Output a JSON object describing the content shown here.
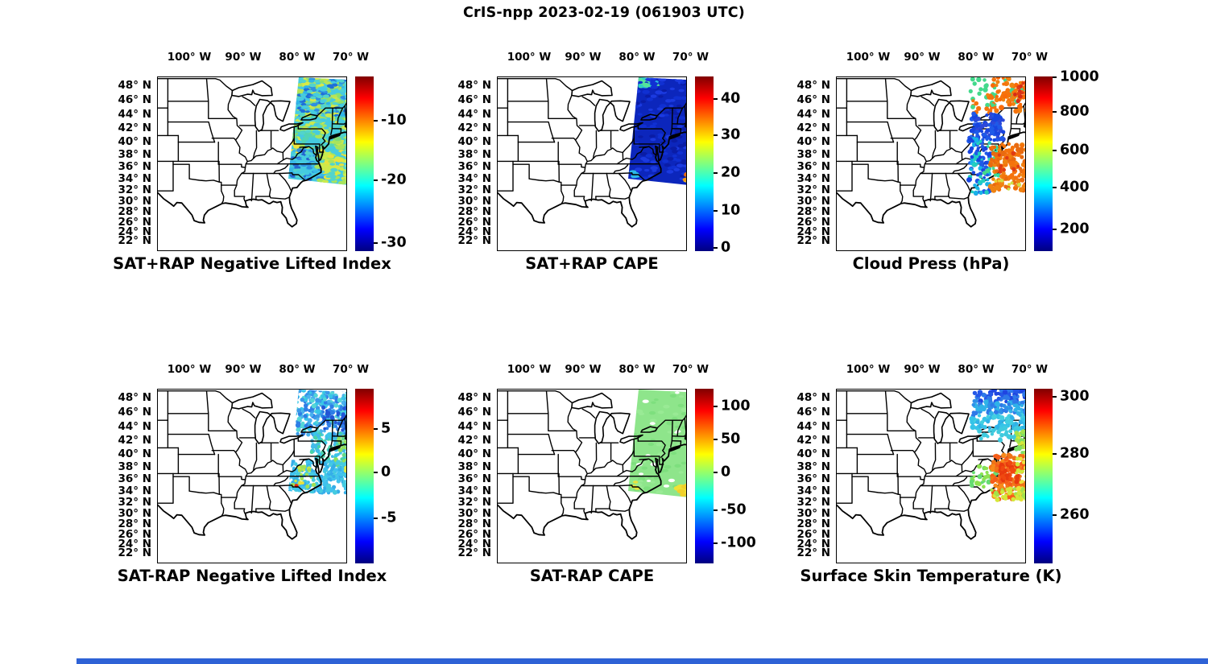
{
  "ui": {
    "window_title": "CrIS-npp 2023-02-19 (061903 UTC)",
    "background_color": "#ffffff",
    "text_color": "#000000",
    "bottom_strip_color": "#2e62d6"
  },
  "chart_data": {
    "type": "scatter",
    "layout": "2 rows x 3 columns of identical US maps with individual jet colorbars",
    "title": "CrIS-npp 2023-02-19 (061903 UTC)",
    "colormap": "jet",
    "map_extent_note": "Eastern United States, approx 106W-70W and 21N-49N, state boundaries drawn in black; satellite swath data over the Northeast US and western Atlantic",
    "lon_ticks": [
      "100° W",
      "90° W",
      "80° W",
      "70° W"
    ],
    "lat_ticks": [
      "48° N",
      "46° N",
      "44° N",
      "42° N",
      "40° N",
      "38° N",
      "36° N",
      "34° N",
      "32° N",
      "30° N",
      "28° N",
      "26° N",
      "24° N",
      "22° N"
    ],
    "panels": [
      {
        "title": "SAT+RAP Negative Lifted Index",
        "summary": "Dense retrieval swath ~79W-66W, 34N-49N: cyan field with green/yellow patches, blue streaks along coast, yellow area southeast offshore",
        "colorbar_ticks": [
          {
            "v": "-10",
            "pct": 25.5
          },
          {
            "v": "-20",
            "pct": 59.5
          },
          {
            "v": "-30",
            "pct": 95.5
          }
        ],
        "seed": 101,
        "base": "#45cbe0",
        "clip": "swath",
        "dots_on_top": false,
        "ellipse": true,
        "clusters": [
          {
            "x": [
              172,
              250
            ],
            "y": [
              1,
              48
            ],
            "n": 130,
            "r": 2.6,
            "c": [
              "#b8e455",
              "#8ce06e",
              "#d6ea48"
            ]
          },
          {
            "x": [
              172,
              250
            ],
            "y": [
              2,
              50
            ],
            "n": 90,
            "r": 2.2,
            "c": [
              "#2f8fe0",
              "#2fb4e8",
              "#1f6fd8"
            ]
          },
          {
            "x": [
              166,
              250
            ],
            "y": [
              48,
              95
            ],
            "n": 160,
            "r": 2.6,
            "c": [
              "#7fdc78",
              "#a8e45c",
              "#52d4b4",
              "#c9e84e"
            ]
          },
          {
            "x": [
              165,
              178
            ],
            "y": [
              78,
              96
            ],
            "n": 16,
            "r": 2.4,
            "c": [
              "#f0e43a"
            ]
          },
          {
            "x": [
              164,
              208
            ],
            "y": [
              88,
              128
            ],
            "n": 90,
            "r": 2.2,
            "c": [
              "#2f8fe0",
              "#38b8e8",
              "#2565d0",
              "#45cbe0"
            ]
          },
          {
            "x": [
              200,
              250
            ],
            "y": [
              92,
              134
            ],
            "n": 130,
            "r": 2.6,
            "c": [
              "#e6e23e",
              "#ccea4c",
              "#a8e45c"
            ]
          },
          {
            "x": [
              172,
              250
            ],
            "y": [
              1,
              128
            ],
            "n": 120,
            "r": 2.4,
            "c": [
              "#45cbe0",
              "#52d4cc"
            ]
          }
        ]
      },
      {
        "title": "SAT+RAP CAPE",
        "summary": "Same swath almost uniformly dark blue (~0 J/kg); small cyan-green patch at swath top-left corner, cyan dot at SC coast, tiny orange/yellow spot at right edge near 34N",
        "colorbar_ticks": [
          {
            "v": "40",
            "pct": 13
          },
          {
            "v": "30",
            "pct": 33.5
          },
          {
            "v": "20",
            "pct": 55.5
          },
          {
            "v": "10",
            "pct": 77
          },
          {
            "v": "0",
            "pct": 98
          }
        ],
        "seed": 202,
        "base": "#0c26bc",
        "clip": "swath",
        "dots_on_top": false,
        "ellipse": true,
        "clusters": [
          {
            "x": [
              176,
              200
            ],
            "y": [
              1,
              13
            ],
            "n": 26,
            "r": 2.2,
            "c": [
              "#2ecfc4",
              "#55e49a",
              "#28b2e8"
            ]
          },
          {
            "x": [
              172,
              250
            ],
            "y": [
              1,
              130
            ],
            "n": 150,
            "r": 2.4,
            "c": [
              "#0a1ca6",
              "#1030d2",
              "#1b3ae0"
            ]
          },
          {
            "x": [
              168,
              176
            ],
            "y": [
              116,
              126
            ],
            "n": 5,
            "r": 2.2,
            "c": [
              "#2cb8e8"
            ]
          },
          {
            "x": [
              234,
              242
            ],
            "y": [
              119,
              130
            ],
            "n": 7,
            "r": 2.4,
            "c": [
              "#f59a10",
              "#f2c81e",
              "#e86a10"
            ]
          }
        ]
      },
      {
        "title": "Cloud Press (hPa)",
        "summary": "Sparser cloud-top dots: orange (~800 hPa) over New England and offshore Atlantic, royal-blue patch (~150-250 hPa) over PA/NY, cyan column inland 34-38N, scattered green (~500 hPa) along top, red specks northeast",
        "colorbar_ticks": [
          {
            "v": "1000",
            "pct": 0.5
          },
          {
            "v": "800",
            "pct": 20.5
          },
          {
            "v": "600",
            "pct": 42.5
          },
          {
            "v": "400",
            "pct": 63.5
          },
          {
            "v": "200",
            "pct": 87.5
          }
        ],
        "seed": 303,
        "base": null,
        "clip": "rect",
        "dots_on_top": true,
        "ellipse": false,
        "clusters": [
          {
            "x": [
              166,
              246
            ],
            "y": [
              2,
              32
            ],
            "n": 30,
            "r": 2.6,
            "c": [
              "#43d98c"
            ]
          },
          {
            "x": [
              188,
              250
            ],
            "y": [
              1,
              44
            ],
            "n": 110,
            "r": 2.6,
            "c": [
              "#f5730c",
              "#ef8312",
              "#fa6a08"
            ]
          },
          {
            "x": [
              222,
              248
            ],
            "y": [
              6,
              34
            ],
            "n": 14,
            "r": 2.4,
            "c": [
              "#d62c1a",
              "#e03c14"
            ]
          },
          {
            "x": [
              170,
              200
            ],
            "y": [
              28,
              50
            ],
            "n": 16,
            "r": 2.4,
            "c": [
              "#43d98c",
              "#f5730c"
            ]
          },
          {
            "x": [
              168,
              208
            ],
            "y": [
              46,
              80
            ],
            "n": 110,
            "r": 2.5,
            "c": [
              "#1845e0",
              "#1f5ae8",
              "#2e48d8"
            ]
          },
          {
            "x": [
              165,
              192
            ],
            "y": [
              76,
              145
            ],
            "n": 100,
            "r": 2.5,
            "c": [
              "#1845e0",
              "#18b2e8",
              "#22cfc0",
              "#1f5ae8"
            ]
          },
          {
            "x": [
              184,
              202
            ],
            "y": [
              84,
              124
            ],
            "n": 18,
            "r": 2.3,
            "c": [
              "#43d98c",
              "#2ee0a8"
            ]
          },
          {
            "x": [
              192,
              246
            ],
            "y": [
              84,
              142
            ],
            "n": 170,
            "r": 2.7,
            "c": [
              "#f5730c",
              "#ef8312",
              "#e86a10"
            ]
          },
          {
            "x": [
              200,
              230
            ],
            "y": [
              95,
              120
            ],
            "n": 10,
            "r": 2.4,
            "c": [
              "#e03c14"
            ]
          },
          {
            "x": [
              196,
              240
            ],
            "y": [
              128,
              140
            ],
            "n": 8,
            "r": 2.3,
            "c": [
              "#e8d232",
              "#cde04a"
            ]
          }
        ]
      },
      {
        "title": "SAT-RAP Negative Lifted Index",
        "summary": "Swath of cyan/light-blue dots (differences near 0 to -3); darker blue top and New England, green strip at right edge 38-42N, yellow-green specks along coast, one red dot near SC coast (~34N,79W)",
        "colorbar_ticks": [
          {
            "v": "5",
            "pct": 23
          },
          {
            "v": "0",
            "pct": 48
          },
          {
            "v": "-5",
            "pct": 74
          }
        ],
        "seed": 404,
        "base": null,
        "clip": "swath",
        "dots_on_top": false,
        "ellipse": false,
        "clusters": [
          {
            "x": [
              170,
              250
            ],
            "y": [
              1,
              58
            ],
            "n": 300,
            "r": 2.4,
            "c": [
              "#4ab2ee",
              "#37c6e8",
              "#2e7ee6",
              "#55d6d6",
              "#3a9ae8"
            ]
          },
          {
            "x": [
              205,
              248
            ],
            "y": [
              22,
              62
            ],
            "n": 60,
            "r": 2.4,
            "c": [
              "#2356d6",
              "#2e7ee6"
            ]
          },
          {
            "x": [
              192,
              250
            ],
            "y": [
              55,
              92
            ],
            "n": 140,
            "r": 2.4,
            "c": [
              "#3cc6e8",
              "#49d4a8",
              "#42bce8"
            ]
          },
          {
            "x": [
              222,
              248
            ],
            "y": [
              58,
              96
            ],
            "n": 50,
            "r": 2.4,
            "c": [
              "#66d988",
              "#90e05e"
            ]
          },
          {
            "x": [
              163,
              238
            ],
            "y": [
              90,
              130
            ],
            "n": 210,
            "r": 2.4,
            "c": [
              "#40c2ee",
              "#35aee8",
              "#45cbe0"
            ]
          },
          {
            "x": [
              168,
              196
            ],
            "y": [
              96,
              122
            ],
            "n": 18,
            "r": 2.2,
            "c": [
              "#c6e648",
              "#a0e055"
            ]
          },
          {
            "x": [
              233,
              240
            ],
            "y": [
              96,
              104
            ],
            "n": 3,
            "r": 2.2,
            "c": [
              "#d8e84a"
            ]
          },
          {
            "x": [
              177,
              182
            ],
            "y": [
              115,
              120
            ],
            "n": 2,
            "r": 2.2,
            "c": [
              "#e8e23c"
            ]
          },
          {
            "x": [
              170,
              174
            ],
            "y": [
              120,
              124
            ],
            "n": 2,
            "r": 2.6,
            "c": [
              "#e8200e"
            ]
          }
        ]
      },
      {
        "title": "SAT-RAP CAPE",
        "summary": "Swath almost uniformly light green (difference ~0 J/kg) with small white gaps; yellow blob at right edge near 34N and small yellow dot at SC coast",
        "colorbar_ticks": [
          {
            "v": "100",
            "pct": 10
          },
          {
            "v": "50",
            "pct": 29
          },
          {
            "v": "0",
            "pct": 48
          },
          {
            "v": "-50",
            "pct": 69.5
          },
          {
            "v": "-100",
            "pct": 88.5
          }
        ],
        "seed": 505,
        "base": "#8ee58b",
        "clip": "swath",
        "dots_on_top": false,
        "ellipse": true,
        "clusters": [
          {
            "x": [
              168,
              250
            ],
            "y": [
              1,
              132
            ],
            "n": 90,
            "r": 2.4,
            "c": [
              "#7edf7e",
              "#99ea95"
            ]
          },
          {
            "x": [
              175,
              245
            ],
            "y": [
              5,
              125
            ],
            "n": 14,
            "r": 2.2,
            "c": [
              "#ffffff"
            ]
          },
          {
            "x": [
              224,
              246
            ],
            "y": [
              118,
              133
            ],
            "n": 14,
            "r": 3,
            "c": [
              "#efe135",
              "#f0d02a"
            ]
          },
          {
            "x": [
              168,
              176
            ],
            "y": [
              116,
              124
            ],
            "n": 4,
            "r": 2.2,
            "c": [
              "#e8e23c"
            ]
          }
        ]
      },
      {
        "title": "Surface Skin Temperature (K)",
        "summary": "Blue (~250K) at swath top grading to cyan (~260K) by 44N; lime/yellow-green (~270-275K) along coast; large orange-red blob (~285-290K) offshore 34-38.5N; yellow fringe at east edge and south edge",
        "colorbar_ticks": [
          {
            "v": "300",
            "pct": 4.5
          },
          {
            "v": "280",
            "pct": 37.5
          },
          {
            "v": "260",
            "pct": 72.5
          }
        ],
        "seed": 606,
        "base": null,
        "clip": "rect",
        "dots_on_top": true,
        "ellipse": false,
        "clusters": [
          {
            "x": [
              172,
              250
            ],
            "y": [
              1,
              17
            ],
            "n": 80,
            "r": 2.7,
            "c": [
              "#2457e8",
              "#2e79e8",
              "#1f45e0"
            ]
          },
          {
            "x": [
              170,
              250
            ],
            "y": [
              15,
              34
            ],
            "n": 95,
            "r": 2.7,
            "c": [
              "#2e8fe8",
              "#2fb2e8",
              "#2e79e8"
            ]
          },
          {
            "x": [
              168,
              250
            ],
            "y": [
              32,
              50
            ],
            "n": 85,
            "r": 2.7,
            "c": [
              "#35c4e8",
              "#43cfe0",
              "#2fb2e8"
            ]
          },
          {
            "x": [
              178,
              228
            ],
            "y": [
              48,
              64
            ],
            "n": 30,
            "r": 2.5,
            "c": [
              "#3ecade"
            ]
          },
          {
            "x": [
              224,
              246
            ],
            "y": [
              52,
              82
            ],
            "n": 35,
            "r": 2.6,
            "c": [
              "#a3e24c",
              "#d5e83a",
              "#7adf66"
            ]
          },
          {
            "x": [
              168,
              200
            ],
            "y": [
              94,
              122
            ],
            "n": 30,
            "r": 2.5,
            "c": [
              "#8de24f",
              "#65dc72"
            ]
          },
          {
            "x": [
              193,
              236
            ],
            "y": [
              82,
              138
            ],
            "n": 150,
            "r": 2.8,
            "c": [
              "#f55c1a",
              "#f8891a",
              "#ef7418"
            ]
          },
          {
            "x": [
              203,
              226
            ],
            "y": [
              92,
              116
            ],
            "n": 35,
            "r": 2.7,
            "c": [
              "#e83a0e",
              "#f04810"
            ]
          },
          {
            "x": [
              224,
              248
            ],
            "y": [
              78,
              138
            ],
            "n": 40,
            "r": 2.6,
            "c": [
              "#ece23a",
              "#cfe83c"
            ]
          },
          {
            "x": [
              193,
              242
            ],
            "y": [
              124,
              138
            ],
            "n": 30,
            "r": 2.6,
            "c": [
              "#a3e24c",
              "#d5e83a"
            ]
          }
        ]
      }
    ]
  }
}
